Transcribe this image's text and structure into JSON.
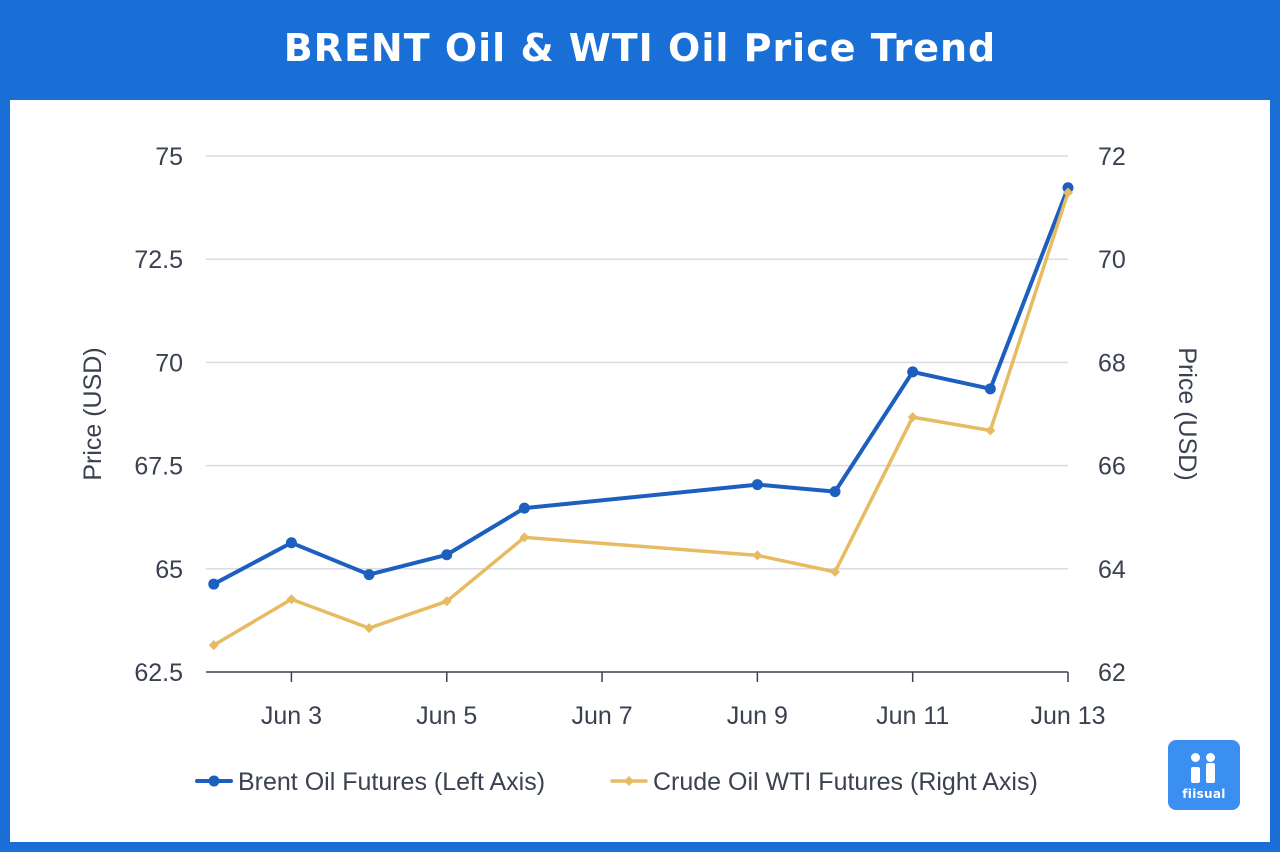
{
  "header": {
    "title": "BRENT Oil & WTI Oil Price Trend"
  },
  "logo": {
    "text": "fiisual"
  },
  "colors": {
    "brent": "#1c5fbf",
    "wti": "#e6bb62",
    "frame": "#1a6fd6",
    "grid": "#d9dce2"
  },
  "chart_data": {
    "type": "line",
    "title": "BRENT Oil & WTI Oil Price Trend",
    "x": [
      "Jun 2",
      "Jun 3",
      "Jun 4",
      "Jun 5",
      "Jun 6",
      "Jun 9",
      "Jun 10",
      "Jun 11",
      "Jun 12",
      "Jun 13"
    ],
    "x_numeric_day": [
      2,
      3,
      4,
      5,
      6,
      9,
      10,
      11,
      12,
      13
    ],
    "xticks": [
      "Jun 3",
      "Jun 5",
      "Jun 7",
      "Jun 9",
      "Jun 11",
      "Jun 13"
    ],
    "xtick_days": [
      3,
      5,
      7,
      9,
      11,
      13
    ],
    "xlim": [
      1.9,
      13
    ],
    "left_axis": {
      "label": "Price (USD)",
      "ylim": [
        62.5,
        75
      ],
      "ticks": [
        "62.5",
        "65",
        "67.5",
        "70",
        "72.5",
        "75"
      ],
      "tick_values": [
        62.5,
        65,
        67.5,
        70,
        72.5,
        75
      ]
    },
    "right_axis": {
      "label": "Price (USD)",
      "ylim": [
        62,
        72
      ],
      "ticks": [
        "62",
        "64",
        "66",
        "68",
        "70",
        "72"
      ],
      "tick_values": [
        62,
        64,
        66,
        68,
        70,
        72
      ]
    },
    "series": [
      {
        "name": "Brent Oil Futures (Left Axis)",
        "axis": "left",
        "marker": "circle",
        "values": [
          64.63,
          65.63,
          64.86,
          65.34,
          66.47,
          67.04,
          66.87,
          69.77,
          69.36,
          74.23
        ]
      },
      {
        "name": "Crude Oil WTI Futures (Right Axis)",
        "axis": "right",
        "marker": "diamond",
        "values": [
          62.52,
          63.41,
          62.85,
          63.37,
          64.61,
          64.26,
          63.94,
          66.94,
          66.68,
          71.29
        ]
      }
    ],
    "grid": true,
    "legend": "bottom"
  }
}
